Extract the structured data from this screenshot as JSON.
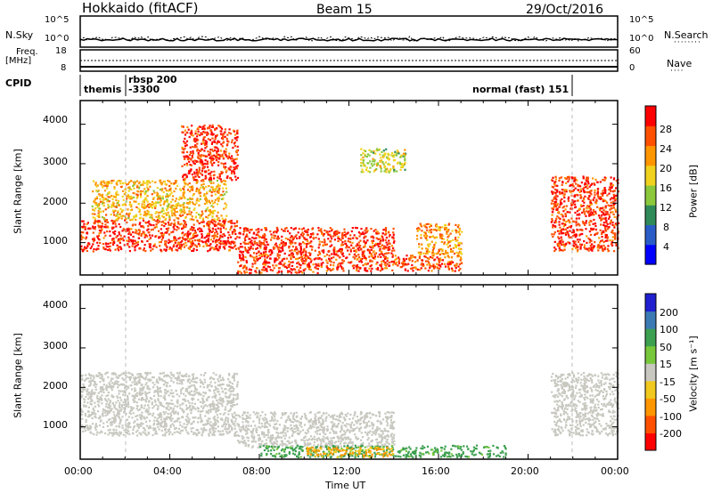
{
  "header": {
    "station": "Hokkaido (fitACF)",
    "beam": "Beam 15",
    "date": "29/Oct/2016"
  },
  "noise_panel": {
    "left_label": "N.Sky",
    "right_label": "N.Search",
    "tick_top": "10^5",
    "tick_bottom": "10^0"
  },
  "freq_panel": {
    "label_line1": "Freq.",
    "label_line2": "[MHz]",
    "left_ticks": [
      "18",
      "8"
    ],
    "right_ticks": [
      "60",
      "0"
    ],
    "right_label": "Nave"
  },
  "cpid_panel": {
    "label": "CPID",
    "segments": [
      {
        "text": "themis",
        "start_h": 0.0
      },
      {
        "text": "rbsp 200",
        "start_h": 2.0
      },
      {
        "text": "-3300",
        "start_h": 2.0
      },
      {
        "text": "normal (fast) 151",
        "start_h": 21.8
      }
    ]
  },
  "power_panel": {
    "ylabel": "Slant Range [km]",
    "cbar_label": "Power [dB]",
    "cbar_ticks": [
      "28",
      "24",
      "20",
      "16",
      "12",
      "8",
      "4"
    ],
    "cbar_colors": [
      "#0000ff",
      "#2a5cc8",
      "#2f8a5a",
      "#8cc83c",
      "#f0d21e",
      "#ff9600",
      "#ff5000",
      "#ff0000"
    ]
  },
  "velocity_panel": {
    "ylabel": "Slant Range [km]",
    "cbar_label": "Velocity [m s⁻¹]",
    "cbar_ticks": [
      "200",
      "100",
      "50",
      "15",
      "-15",
      "-50",
      "-100",
      "-200"
    ],
    "cbar_colors": [
      "#2020d0",
      "#3c7ab4",
      "#3ca050",
      "#78c83c",
      "#c8c8c0",
      "#f0c81e",
      "#ff9600",
      "#ff5000",
      "#ff0000"
    ]
  },
  "x_axis": {
    "label": "Time UT",
    "ticks": [
      "00:00",
      "04:00",
      "08:00",
      "12:00",
      "16:00",
      "20:00",
      "00:00"
    ]
  },
  "y_ticks": [
    "4000",
    "3000",
    "2000",
    "1000"
  ],
  "chart_data": {
    "type": "heatmap",
    "title": "Hokkaido (fitACF) Beam 15 29/Oct/2016",
    "xlabel": "Time UT",
    "ylabel": "Slant Range [km]",
    "xlim_hours": [
      0,
      24
    ],
    "ylim_km": [
      180,
      4600
    ],
    "grid": false,
    "power_scatter_regions": [
      {
        "t0": 0.0,
        "t1": 7.0,
        "r0": 800,
        "r1": 1600,
        "power_db": 28
      },
      {
        "t0": 0.5,
        "t1": 6.5,
        "r0": 1600,
        "r1": 2600,
        "power_db": 20
      },
      {
        "t0": 4.5,
        "t1": 7.0,
        "r0": 2600,
        "r1": 4000,
        "power_db": 28
      },
      {
        "t0": 7.0,
        "t1": 11.0,
        "r0": 250,
        "r1": 1400,
        "power_db": 28
      },
      {
        "t0": 11.0,
        "t1": 14.0,
        "r0": 300,
        "r1": 1400,
        "power_db": 28
      },
      {
        "t0": 15.0,
        "t1": 17.0,
        "r0": 700,
        "r1": 1500,
        "power_db": 22
      },
      {
        "t0": 14.0,
        "t1": 17.0,
        "r0": 300,
        "r1": 700,
        "power_db": 26
      },
      {
        "t0": 21.0,
        "t1": 24.0,
        "r0": 800,
        "r1": 2700,
        "power_db": 28
      },
      {
        "t0": 12.5,
        "t1": 14.5,
        "r0": 2800,
        "r1": 3400,
        "power_db": 16
      }
    ],
    "velocity_scatter_regions": [
      {
        "t0": 0.0,
        "t1": 7.0,
        "r0": 800,
        "r1": 2400,
        "velocity_ms": 0
      },
      {
        "t0": 7.0,
        "t1": 14.0,
        "r0": 500,
        "r1": 1400,
        "velocity_ms": 0
      },
      {
        "t0": 8.0,
        "t1": 19.0,
        "r0": 250,
        "r1": 550,
        "velocity_ms": 60
      },
      {
        "t0": 10.0,
        "t1": 14.0,
        "r0": 250,
        "r1": 500,
        "velocity_ms": -50
      },
      {
        "t0": 21.0,
        "t1": 24.0,
        "r0": 800,
        "r1": 2400,
        "velocity_ms": 0
      }
    ]
  }
}
